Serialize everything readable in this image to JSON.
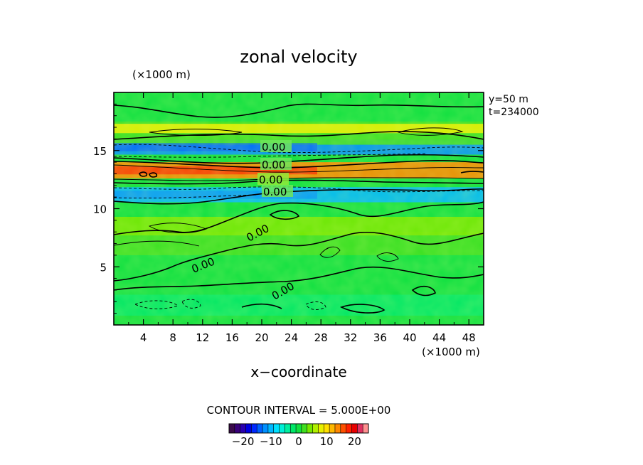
{
  "chart_data": {
    "type": "heatmap",
    "title": "zonal velocity",
    "xlabel": "x−coordinate",
    "x_unit_label": "(×1000 m)",
    "y_unit_label": "(×1000 m)",
    "xlim": [
      0,
      50
    ],
    "ylim": [
      0,
      20
    ],
    "x_ticks": [
      4,
      8,
      12,
      16,
      20,
      24,
      28,
      32,
      36,
      40,
      44,
      48
    ],
    "y_ticks": [
      5,
      10,
      15
    ],
    "info_lines": [
      "y=50  m",
      "t=234000"
    ],
    "contour_interval_text": "CONTOUR INTERVAL = 5.000E+00",
    "contour_labels": [
      "0.00",
      "0.00",
      "0.00",
      "0.00",
      "0.00",
      "0.00",
      "0.00"
    ],
    "colorbar": {
      "min": -25,
      "max": 25,
      "ticks": [
        -20,
        -10,
        0,
        10,
        20
      ],
      "tick_labels": [
        "−20",
        "−10",
        "0",
        "10",
        "20"
      ],
      "colors": [
        "#3a0a4a",
        "#38007a",
        "#2a00b0",
        "#0000e0",
        "#0028ff",
        "#0060ff",
        "#0090ff",
        "#00b8ff",
        "#00e0ff",
        "#00f0d8",
        "#00f0a0",
        "#00e868",
        "#10e040",
        "#40e020",
        "#78e800",
        "#b0f000",
        "#e8f000",
        "#ffe000",
        "#ffb800",
        "#ff8800",
        "#ff5000",
        "#ff2000",
        "#e80000",
        "#e03060",
        "#ff9090"
      ]
    },
    "bands": [
      {
        "y": 1.9,
        "value": -2
      },
      {
        "y": 3.6,
        "value": 0.5
      },
      {
        "y": 7.0,
        "value": 2
      },
      {
        "y": 8.5,
        "value": 3
      },
      {
        "y": 11.2,
        "value": -10
      },
      {
        "y": 13.3,
        "value": 13
      },
      {
        "y": 15.3,
        "value": -12
      },
      {
        "y": 16.5,
        "value": 2
      },
      {
        "y": 16.9,
        "value": 7
      }
    ]
  }
}
